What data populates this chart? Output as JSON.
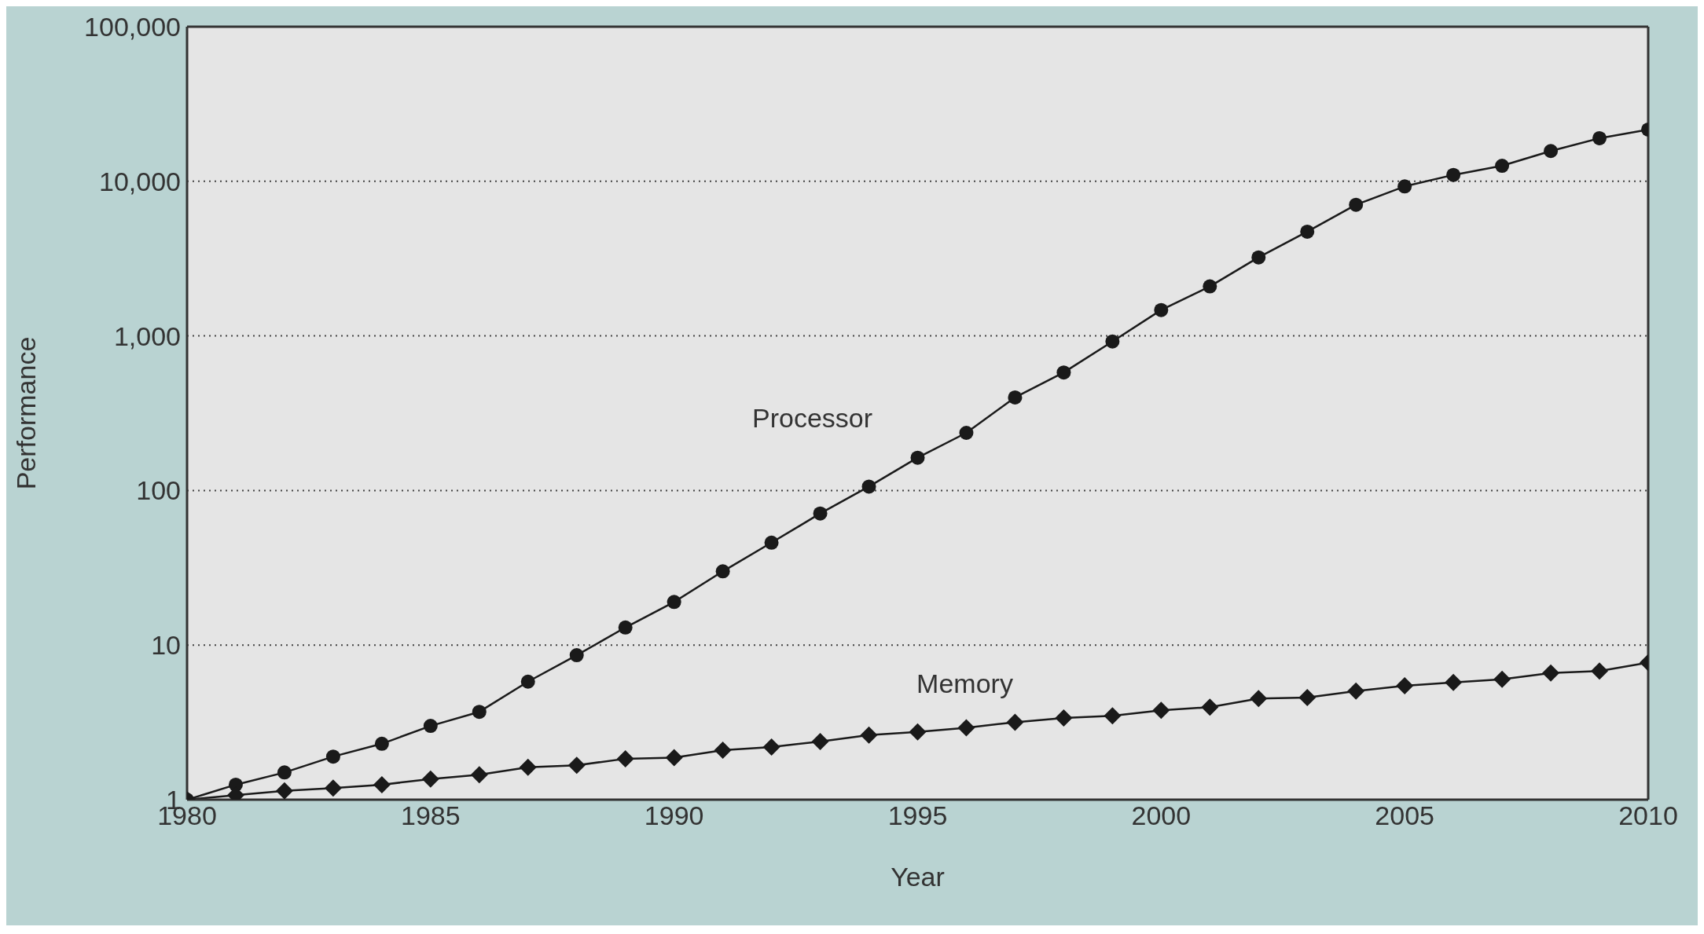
{
  "chart_data": {
    "type": "line",
    "xlabel": "Year",
    "ylabel": "Performance",
    "log": "y",
    "grid": "y",
    "legend": false,
    "line_style": "solid",
    "x": [
      1980,
      1981,
      1982,
      1983,
      1984,
      1985,
      1986,
      1987,
      1988,
      1989,
      1990,
      1991,
      1992,
      1993,
      1994,
      1995,
      1996,
      1997,
      1998,
      1999,
      2000,
      2001,
      2002,
      2003,
      2004,
      2005,
      2006,
      2007,
      2008,
      2009,
      2010
    ],
    "xlim": [
      1980,
      2010
    ],
    "xticks": [
      1980,
      1985,
      1990,
      1995,
      2000,
      2005,
      2010
    ],
    "ylim": [
      1,
      100000
    ],
    "yticks": [
      1,
      10,
      100,
      {
        "value": 1000,
        "label": "1,000"
      },
      {
        "value": 10000,
        "label": "10,000"
      },
      {
        "value": 100000,
        "label": "100,000"
      }
    ],
    "series": [
      {
        "name": "Processor",
        "color": "#1a1a1a",
        "marker": "circle",
        "values": [
          1,
          1.25,
          1.5,
          1.9,
          2.3,
          3.0,
          3.7,
          5.8,
          8.6,
          13,
          19,
          30,
          46,
          71,
          106,
          163,
          236,
          400,
          580,
          920,
          1470,
          2090,
          3220,
          4720,
          7050,
          9270,
          11000,
          12600,
          15700,
          19000,
          21600
        ]
      },
      {
        "name": "Memory",
        "color": "#1a1a1a",
        "marker": "diamond",
        "values": [
          1,
          1.07,
          1.14,
          1.19,
          1.25,
          1.36,
          1.45,
          1.62,
          1.67,
          1.84,
          1.87,
          2.09,
          2.19,
          2.38,
          2.62,
          2.74,
          2.92,
          3.17,
          3.38,
          3.49,
          3.78,
          3.97,
          4.51,
          4.58,
          5.04,
          5.46,
          5.74,
          6.01,
          6.6,
          6.8,
          7.7
        ]
      }
    ]
  }
}
